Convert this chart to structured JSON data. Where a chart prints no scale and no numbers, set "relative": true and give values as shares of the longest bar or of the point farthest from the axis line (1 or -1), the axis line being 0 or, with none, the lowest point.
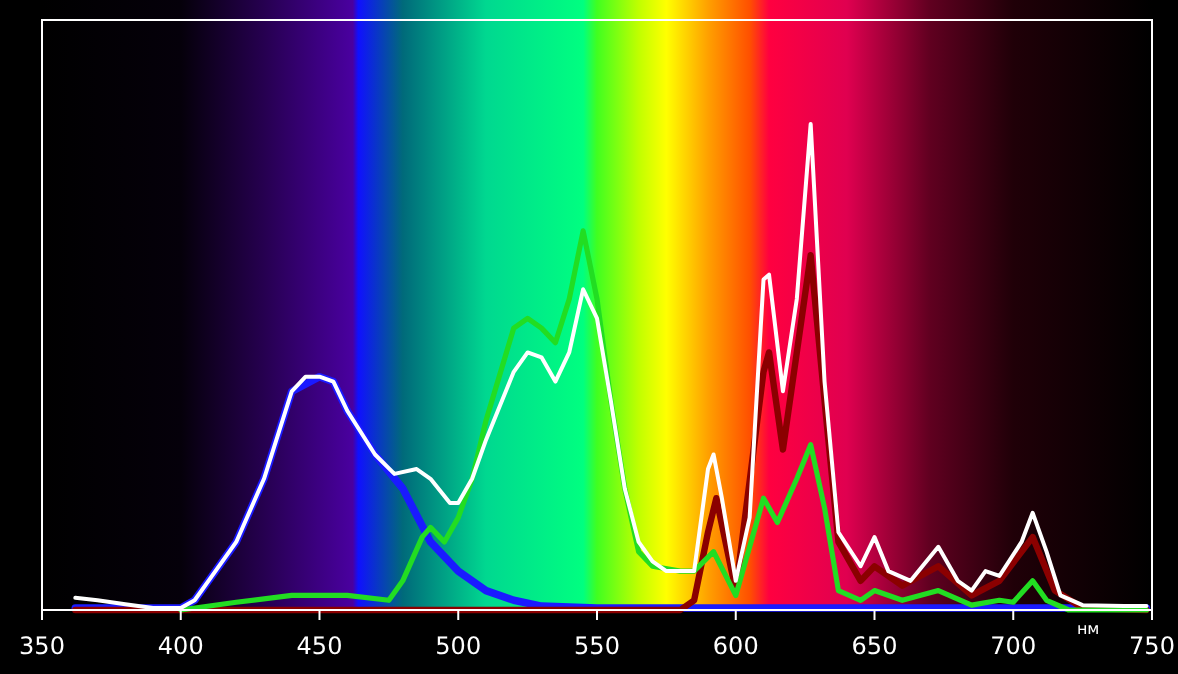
{
  "chart_data": {
    "type": "line",
    "relative": true,
    "xlabel": "нм",
    "xlim": [
      350,
      750
    ],
    "xticks": [
      350,
      400,
      450,
      500,
      550,
      600,
      650,
      700,
      750
    ],
    "grid": false,
    "marker": "none",
    "line_style": "solid",
    "series": [
      {
        "color": "#1a1aff",
        "x": [
          362,
          400,
          405,
          410,
          420,
          430,
          440,
          450,
          455,
          460,
          470,
          480,
          490,
          500,
          510,
          520,
          530,
          550,
          748
        ],
        "values": [
          0.004,
          0.004,
          0.02,
          0.06,
          0.14,
          0.27,
          0.45,
          0.48,
          0.47,
          0.41,
          0.32,
          0.25,
          0.14,
          0.08,
          0.04,
          0.02,
          0.008,
          0.004,
          0.004
        ]
      },
      {
        "color": "#8b0000",
        "x": [
          362,
          580,
          585,
          590,
          593,
          600,
          610,
          612,
          617,
          627,
          632,
          637,
          645,
          650,
          660,
          673,
          685,
          695,
          707,
          715,
          725,
          748
        ],
        "values": [
          0,
          0,
          0.02,
          0.16,
          0.23,
          0.04,
          0.49,
          0.53,
          0.33,
          0.73,
          0.43,
          0.14,
          0.06,
          0.09,
          0.05,
          0.09,
          0.03,
          0.06,
          0.15,
          0.04,
          0.004,
          0
        ]
      },
      {
        "color": "#22dd22",
        "x": [
          400,
          420,
          440,
          460,
          475,
          480,
          487,
          490,
          495,
          500,
          505,
          510,
          520,
          525,
          530,
          535,
          540,
          545,
          550,
          555,
          560,
          565,
          570,
          580,
          585,
          592,
          600,
          610,
          615,
          622,
          627,
          632,
          637,
          645,
          650,
          660,
          673,
          685,
          695,
          700,
          707,
          712,
          720,
          748
        ],
        "values": [
          0,
          0.016,
          0.03,
          0.03,
          0.02,
          0.06,
          0.15,
          0.17,
          0.14,
          0.19,
          0.27,
          0.39,
          0.58,
          0.6,
          0.58,
          0.55,
          0.64,
          0.78,
          0.64,
          0.43,
          0.25,
          0.12,
          0.09,
          0.08,
          0.08,
          0.12,
          0.03,
          0.23,
          0.18,
          0.27,
          0.34,
          0.21,
          0.04,
          0.02,
          0.04,
          0.02,
          0.04,
          0.01,
          0.02,
          0.016,
          0.06,
          0.02,
          0,
          0
        ]
      },
      {
        "color": "#ffffff",
        "x": [
          362,
          370,
          380,
          390,
          400,
          405,
          410,
          420,
          430,
          440,
          445,
          450,
          455,
          460,
          470,
          477,
          485,
          490,
          497,
          500,
          505,
          510,
          520,
          525,
          530,
          535,
          540,
          545,
          550,
          555,
          560,
          565,
          570,
          575,
          580,
          585,
          590,
          592,
          595,
          600,
          605,
          610,
          612,
          617,
          622,
          627,
          632,
          637,
          645,
          650,
          655,
          663,
          673,
          680,
          685,
          690,
          695,
          703,
          707,
          712,
          717,
          725,
          740,
          748
        ],
        "values": [
          0.025,
          0.02,
          0.012,
          0.004,
          0.004,
          0.02,
          0.06,
          0.14,
          0.27,
          0.45,
          0.48,
          0.48,
          0.47,
          0.41,
          0.32,
          0.28,
          0.29,
          0.27,
          0.22,
          0.22,
          0.27,
          0.35,
          0.49,
          0.53,
          0.52,
          0.47,
          0.53,
          0.66,
          0.6,
          0.43,
          0.25,
          0.14,
          0.1,
          0.08,
          0.08,
          0.08,
          0.29,
          0.32,
          0.23,
          0.06,
          0.19,
          0.68,
          0.69,
          0.45,
          0.64,
          1,
          0.47,
          0.16,
          0.09,
          0.15,
          0.08,
          0.06,
          0.13,
          0.06,
          0.04,
          0.08,
          0.07,
          0.14,
          0.2,
          0.12,
          0.03,
          0.01,
          0.008,
          0.008
        ]
      }
    ]
  }
}
